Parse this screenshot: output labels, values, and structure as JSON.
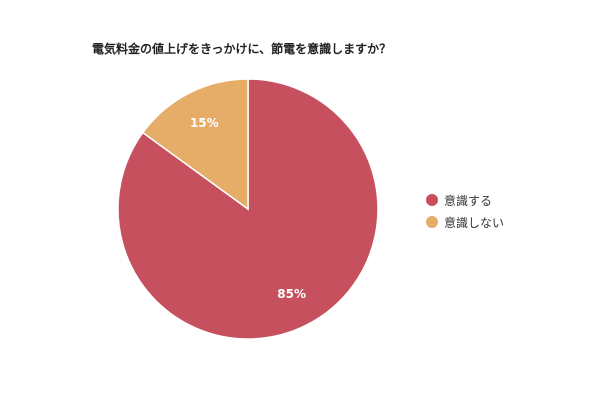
{
  "colors": {
    "aware": "#c7505e",
    "not_aware": "#e6ad68",
    "slice_border": "#ffffff",
    "label_text": "#ffffff"
  },
  "chart_data": {
    "type": "pie",
    "title": "電気料金の値上げをきっかけに、節電を意識しますか？",
    "slices": [
      {
        "label": "意識する",
        "value": 85,
        "value_label": "85%",
        "color": "#c7505e"
      },
      {
        "label": "意識しない",
        "value": 15,
        "value_label": "15%",
        "color": "#e6ad68"
      }
    ],
    "start_angle": "12 o'clock",
    "direction": "clockwise",
    "legend_position": "right"
  }
}
